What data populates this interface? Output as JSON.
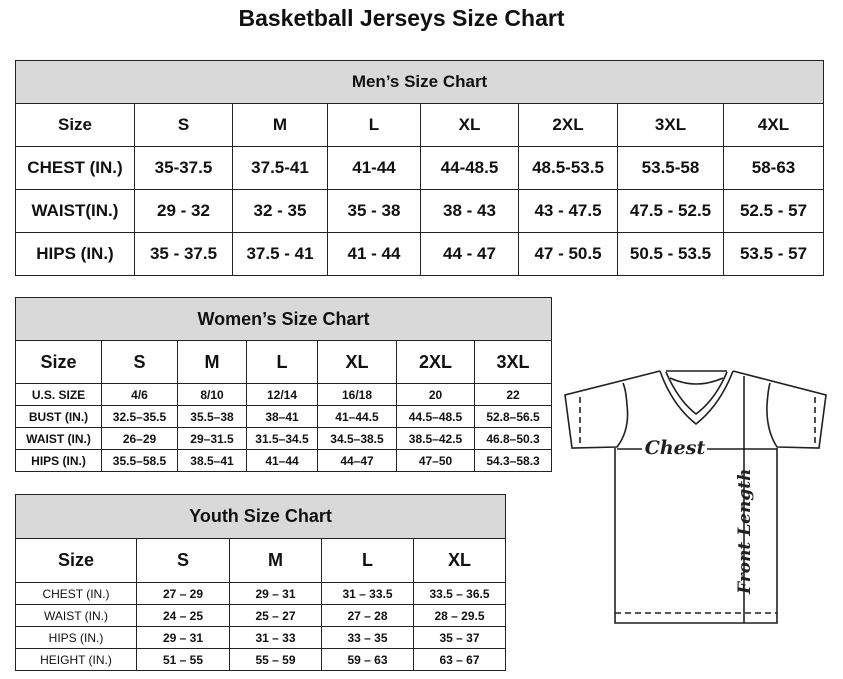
{
  "title": "Basketball Jerseys Size Chart",
  "men": {
    "heading": "Men’s Size Chart",
    "header": [
      "Size",
      "S",
      "M",
      "L",
      "XL",
      "2XL",
      "3XL",
      "4XL"
    ],
    "rows": [
      [
        "CHEST (IN.)",
        "35-37.5",
        "37.5-41",
        "41-44",
        "44-48.5",
        "48.5-53.5",
        "53.5-58",
        "58-63"
      ],
      [
        "WAIST(IN.)",
        "29 - 32",
        "32 - 35",
        "35 - 38",
        "38 - 43",
        "43 - 47.5",
        "47.5 - 52.5",
        "52.5 - 57"
      ],
      [
        "HIPS (IN.)",
        "35 - 37.5",
        "37.5 - 41",
        "41 - 44",
        "44 - 47",
        "47 - 50.5",
        "50.5 - 53.5",
        "53.5 - 57"
      ]
    ]
  },
  "women": {
    "heading": "Women’s Size Chart",
    "header": [
      "Size",
      "S",
      "M",
      "L",
      "XL",
      "2XL",
      "3XL"
    ],
    "rows": [
      [
        "U.S.  SIZE",
        "4/6",
        "8/10",
        "12/14",
        "16/18",
        "20",
        "22"
      ],
      [
        "BUST  (IN.)",
        "32.5–35.5",
        "35.5–38",
        "38–41",
        "41–44.5",
        "44.5–48.5",
        "52.8–56.5"
      ],
      [
        "WAIST  (IN.)",
        "26–29",
        "29–31.5",
        "31.5–34.5",
        "34.5–38.5",
        "38.5–42.5",
        "46.8–50.3"
      ],
      [
        "HIPS  (IN.)",
        "35.5–58.5",
        "38.5–41",
        "41–44",
        "44–47",
        "47–50",
        "54.3–58.3"
      ]
    ]
  },
  "youth": {
    "heading": "Youth Size Chart",
    "header": [
      "Size",
      "S",
      "M",
      "L",
      "XL"
    ],
    "rows": [
      [
        "CHEST  (IN.)",
        "27  –  29",
        "29  –  31",
        "31  –  33.5",
        "33.5  –  36.5"
      ],
      [
        "WAIST  (IN.)",
        "24  –  25",
        "25  –  27",
        "27  –  28",
        "28  –  29.5"
      ],
      [
        "HIPS  (IN.)",
        "29  –  31",
        "31  –  33",
        "33  –  35",
        "35  –  37"
      ],
      [
        "HEIGHT  (IN.)",
        "51  –  55",
        "55  –  59",
        "59  –  63",
        "63  –  67"
      ]
    ]
  },
  "diagram": {
    "chest_label": "Chest",
    "length_label": "Front Length",
    "line_color": "#231f20"
  }
}
